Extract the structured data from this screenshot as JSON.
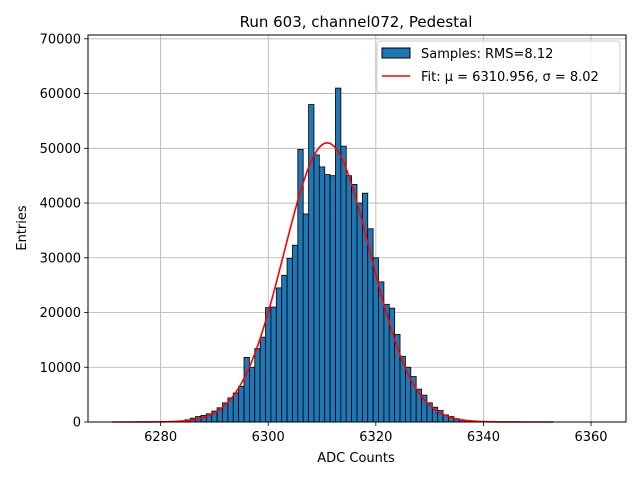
{
  "chart_data": {
    "type": "bar",
    "title": "Run 603, channel072, Pedestal",
    "xlabel": "ADC Counts",
    "ylabel": "Entries",
    "xlim": [
      6266.5,
      6366.5
    ],
    "ylim": [
      0,
      70700
    ],
    "xticks": [
      6280,
      6300,
      6320,
      6340,
      6360
    ],
    "yticks": [
      0,
      10000,
      20000,
      30000,
      40000,
      50000,
      60000,
      70000
    ],
    "grid": true,
    "legend_position": "top-right",
    "legend": {
      "hist_label": "Samples: RMS=8.12",
      "fit_label": "Fit: μ = 6310.956, σ = 8.02"
    },
    "bin_width": 1,
    "x": [
      6283,
      6284,
      6285,
      6286,
      6287,
      6288,
      6289,
      6290,
      6291,
      6292,
      6293,
      6294,
      6295,
      6296,
      6297,
      6298,
      6299,
      6300,
      6301,
      6302,
      6303,
      6304,
      6305,
      6306,
      6307,
      6308,
      6309,
      6310,
      6311,
      6312,
      6313,
      6314,
      6315,
      6316,
      6317,
      6318,
      6319,
      6320,
      6321,
      6322,
      6323,
      6324,
      6325,
      6326,
      6327,
      6328,
      6329,
      6330,
      6331,
      6332,
      6333,
      6334,
      6335,
      6336,
      6337,
      6338,
      6339,
      6340
    ],
    "values": [
      100,
      200,
      400,
      700,
      1000,
      1200,
      1500,
      2000,
      2600,
      3500,
      4400,
      5300,
      6500,
      11800,
      10000,
      13400,
      15500,
      20900,
      21000,
      24500,
      26800,
      29900,
      32300,
      49800,
      38000,
      58000,
      48800,
      46600,
      45200,
      45000,
      61000,
      50400,
      45000,
      43400,
      40000,
      41800,
      35300,
      30000,
      25600,
      21500,
      20800,
      16000,
      12000,
      10000,
      8300,
      6000,
      4900,
      3500,
      2700,
      2100,
      1300,
      1000,
      600,
      400,
      300,
      150,
      100,
      50
    ],
    "fit": {
      "mu": 6310.956,
      "sigma": 8.02,
      "amplitude": 51000,
      "range": [
        6271,
        6353
      ]
    },
    "colors": {
      "bar": "#1f77b4",
      "bar_edge": "#000000",
      "fit": "#ff0000",
      "grid": "#b0b0b0"
    }
  }
}
